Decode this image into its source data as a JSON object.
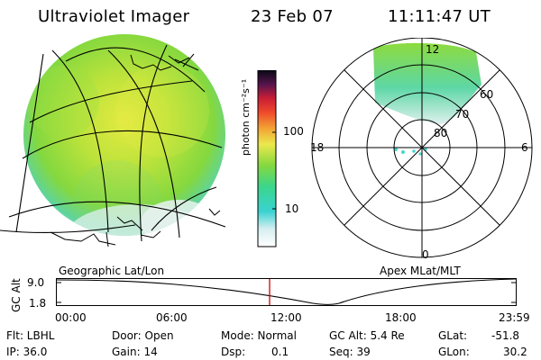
{
  "header": {
    "title": "Ultraviolet Imager",
    "date": "23 Feb 07",
    "time": "11:11:47 UT"
  },
  "colorbar": {
    "unit_label": "photon cm⁻²s⁻¹",
    "ticks": [
      "100",
      "10"
    ]
  },
  "polar_plot": {
    "lat_labels": [
      "80",
      "70",
      "60"
    ],
    "mlt_labels": [
      "12",
      "18",
      "6",
      "0"
    ]
  },
  "panel_labels": {
    "left": "Geographic Lat/Lon",
    "right": "Apex MLat/MLT"
  },
  "altitude_plot": {
    "ylabel": "GC Alt",
    "y_ticks": [
      "9.0",
      "1.8"
    ],
    "x_ticks": [
      "00:00",
      "06:00",
      "12:00",
      "18:00",
      "23:59"
    ]
  },
  "footer": {
    "filter": "Flt: LBHL",
    "ip": "IP: 36.0",
    "door": "Door: Open",
    "gain": "Gain: 14",
    "mode": "Mode: Normal",
    "dsp_label": "Dsp:",
    "dsp_value": "0.1",
    "gc_alt": "GC Alt: 5.4 Re",
    "seq": "Seq: 39",
    "glat_label": "GLat:",
    "glat_value": "-51.8",
    "glon_label": "GLon:",
    "glon_value": "30.2"
  },
  "colors": {
    "marker": "#d40000",
    "aurora_green": "#8cd93a",
    "aurora_cyan": "#49d6cf",
    "aurora_light": "#dcefeF"
  }
}
